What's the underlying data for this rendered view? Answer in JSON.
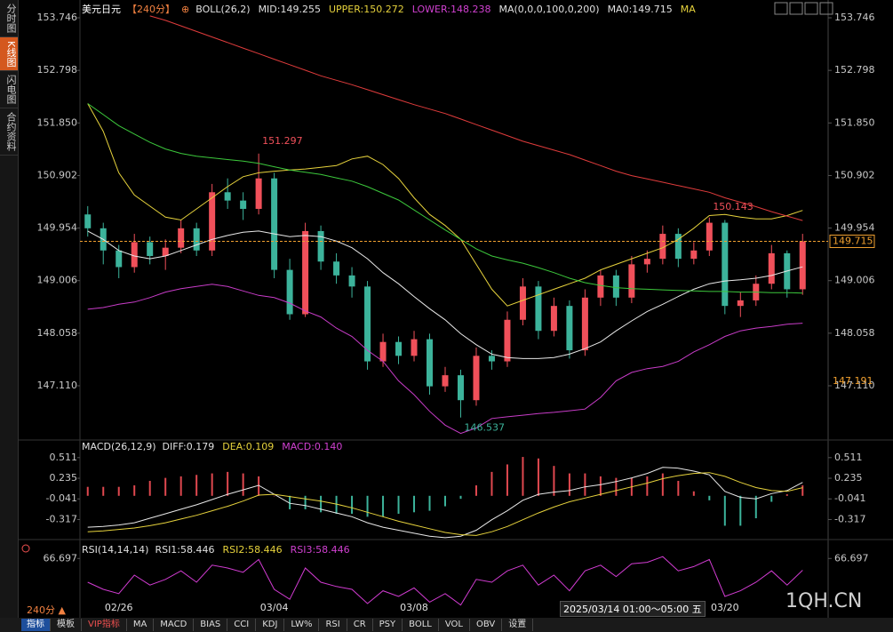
{
  "chart_data": [
    {
      "type": "candlestick",
      "title": "美元日元",
      "period": "【240分】",
      "indicator_labels": [
        "BOLL(26,2)",
        "MID:149.255",
        "UPPER:150.272",
        "LOWER:148.238",
        "MA(0,0,0,100,0,200)",
        "MA0:149.715",
        "MA"
      ],
      "categories": [
        null,
        null,
        "02/26",
        null,
        null,
        null,
        null,
        null,
        null,
        null,
        null,
        null,
        "03/04",
        null,
        null,
        null,
        null,
        null,
        null,
        null,
        null,
        "03/08",
        null,
        null,
        null,
        null,
        null,
        null,
        null,
        null,
        null,
        null,
        null,
        null,
        null,
        null,
        null,
        null,
        null,
        null,
        null,
        "03/20",
        null,
        null,
        null,
        null,
        null
      ],
      "ohlc": [
        [
          150.2,
          150.35,
          149.8,
          149.95
        ],
        [
          149.95,
          150.05,
          149.3,
          149.55
        ],
        [
          149.55,
          149.65,
          149.05,
          149.25
        ],
        [
          149.25,
          149.85,
          149.15,
          149.7
        ],
        [
          149.7,
          149.8,
          149.3,
          149.45
        ],
        [
          149.45,
          149.75,
          149.2,
          149.6
        ],
        [
          149.6,
          150.1,
          149.5,
          149.95
        ],
        [
          149.95,
          150.05,
          149.45,
          149.55
        ],
        [
          149.55,
          150.75,
          149.45,
          150.6
        ],
        [
          150.6,
          150.85,
          150.3,
          150.45
        ],
        [
          150.45,
          150.6,
          150.1,
          150.3
        ],
        [
          150.3,
          151.297,
          150.2,
          150.85
        ],
        [
          150.85,
          150.95,
          149.05,
          149.2
        ],
        [
          149.2,
          149.4,
          148.3,
          148.4
        ],
        [
          148.4,
          150.05,
          148.35,
          149.9
        ],
        [
          149.9,
          150.0,
          149.2,
          149.35
        ],
        [
          149.35,
          149.5,
          148.95,
          149.1
        ],
        [
          149.1,
          149.25,
          148.7,
          148.9
        ],
        [
          148.9,
          149.0,
          147.4,
          147.55
        ],
        [
          147.55,
          148.05,
          147.45,
          147.9
        ],
        [
          147.9,
          148.0,
          147.5,
          147.65
        ],
        [
          147.65,
          148.1,
          147.55,
          147.95
        ],
        [
          147.95,
          148.05,
          146.95,
          147.1
        ],
        [
          147.1,
          147.45,
          147.0,
          147.3
        ],
        [
          147.3,
          147.4,
          146.537,
          146.85
        ],
        [
          146.85,
          147.8,
          146.75,
          147.65
        ],
        [
          147.65,
          147.75,
          147.4,
          147.55
        ],
        [
          147.55,
          148.45,
          147.45,
          148.3
        ],
        [
          148.3,
          149.05,
          148.2,
          148.9
        ],
        [
          148.9,
          149.0,
          147.95,
          148.1
        ],
        [
          148.1,
          148.7,
          148.0,
          148.55
        ],
        [
          148.55,
          148.65,
          147.6,
          147.75
        ],
        [
          147.75,
          148.85,
          147.65,
          148.7
        ],
        [
          148.7,
          149.2,
          148.55,
          149.1
        ],
        [
          149.1,
          149.2,
          148.55,
          148.7
        ],
        [
          148.7,
          149.45,
          148.6,
          149.3
        ],
        [
          149.3,
          149.55,
          149.15,
          149.4
        ],
        [
          149.4,
          150.0,
          149.3,
          149.85
        ],
        [
          149.85,
          149.95,
          149.25,
          149.4
        ],
        [
          149.4,
          149.7,
          149.3,
          149.55
        ],
        [
          149.55,
          150.143,
          149.45,
          150.05
        ],
        [
          150.05,
          150.1,
          148.4,
          148.55
        ],
        [
          148.55,
          148.8,
          148.35,
          148.65
        ],
        [
          148.65,
          149.1,
          148.55,
          148.95
        ],
        [
          148.95,
          149.65,
          148.85,
          149.5
        ],
        [
          149.5,
          149.55,
          148.7,
          148.85
        ],
        [
          148.85,
          149.85,
          148.75,
          149.715
        ]
      ],
      "up_color": "#f0505a",
      "down_color": "#3cb39b",
      "series": [
        {
          "color": "#e8e8e8",
          "values": [
            149.9,
            149.75,
            149.55,
            149.45,
            149.4,
            149.45,
            149.55,
            149.65,
            149.75,
            149.82,
            149.88,
            149.9,
            149.85,
            149.8,
            149.82,
            149.8,
            149.72,
            149.6,
            149.4,
            149.15,
            148.95,
            148.72,
            148.5,
            148.3,
            148.05,
            147.85,
            147.68,
            147.62,
            147.6,
            147.6,
            147.62,
            147.68,
            147.78,
            147.9,
            148.1,
            148.28,
            148.45,
            148.58,
            148.72,
            148.85,
            148.95,
            149.0,
            149.02,
            149.05,
            149.1,
            149.18,
            149.255
          ]
        },
        {
          "color": "#e6d23c",
          "values": [
            152.2,
            151.7,
            150.95,
            150.55,
            150.35,
            150.15,
            150.1,
            150.3,
            150.5,
            150.7,
            150.88,
            150.95,
            150.98,
            151.0,
            151.02,
            151.05,
            151.08,
            151.2,
            151.25,
            151.1,
            150.85,
            150.5,
            150.2,
            150.0,
            149.75,
            149.3,
            148.85,
            148.55,
            148.65,
            148.75,
            148.85,
            148.95,
            149.05,
            149.2,
            149.3,
            149.4,
            149.5,
            149.6,
            149.75,
            149.95,
            150.18,
            150.2,
            150.15,
            150.12,
            150.12,
            150.18,
            150.272
          ]
        },
        {
          "color": "#c83cc8",
          "values": [
            148.49,
            148.52,
            148.58,
            148.62,
            148.7,
            148.8,
            148.86,
            148.9,
            148.94,
            148.9,
            148.82,
            148.74,
            148.7,
            148.6,
            148.46,
            148.35,
            148.15,
            148.0,
            147.75,
            147.55,
            147.2,
            146.95,
            146.65,
            146.4,
            146.25,
            146.35,
            146.52,
            146.55,
            146.58,
            146.61,
            146.63,
            146.66,
            146.69,
            146.9,
            147.2,
            147.35,
            147.42,
            147.46,
            147.55,
            147.72,
            147.85,
            148.0,
            148.1,
            148.15,
            148.18,
            148.22,
            148.238
          ]
        },
        {
          "color": "#3cc83c",
          "values": [
            152.2,
            152.0,
            151.8,
            151.65,
            151.5,
            151.38,
            151.3,
            151.25,
            151.22,
            151.19,
            151.16,
            151.12,
            151.06,
            151.0,
            150.96,
            150.92,
            150.86,
            150.8,
            150.7,
            150.58,
            150.46,
            150.28,
            150.1,
            149.92,
            149.75,
            149.58,
            149.45,
            149.38,
            149.32,
            149.24,
            149.15,
            149.05,
            148.97,
            148.92,
            148.88,
            148.86,
            148.85,
            148.84,
            148.83,
            148.82,
            148.81,
            148.81,
            148.8,
            148.8,
            148.79,
            148.79,
            148.78
          ]
        },
        {
          "color": "#e03c3c",
          "values": [
            null,
            null,
            null,
            null,
            153.78,
            153.7,
            153.6,
            153.5,
            153.4,
            153.3,
            153.2,
            153.1,
            153.0,
            152.9,
            152.8,
            152.7,
            152.62,
            152.54,
            152.45,
            152.36,
            152.27,
            152.18,
            152.1,
            152.02,
            151.92,
            151.82,
            151.72,
            151.62,
            151.52,
            151.44,
            151.36,
            151.28,
            151.18,
            151.08,
            150.98,
            150.9,
            150.84,
            150.78,
            150.72,
            150.66,
            150.6,
            150.5,
            150.42,
            150.34,
            150.25,
            150.17,
            150.09
          ]
        }
      ],
      "last_price_color": "#f0a030",
      "crosshair_price": 147.191,
      "ylim": [
        146.132,
        154.067
      ],
      "yticks": [
        153.746,
        152.798,
        {
          "value": 151.85,
          "label": "151.850"
        },
        150.902,
        149.954,
        149.006,
        148.058,
        {
          "value": 147.11,
          "label": "147.110"
        }
      ],
      "grid": false
    },
    {
      "type": "macd",
      "title": "MACD(26,12,9)",
      "indicator_labels": [
        "DIFF:0.179",
        "DEA:0.109",
        "MACD:0.140"
      ],
      "series": [
        {
          "color": "#e8e8e8",
          "values": [
            -0.42,
            -0.41,
            -0.39,
            -0.36,
            -0.3,
            -0.24,
            -0.18,
            -0.12,
            -0.05,
            0.02,
            0.08,
            0.14,
            0.02,
            -0.1,
            -0.13,
            -0.18,
            -0.23,
            -0.28,
            -0.36,
            -0.42,
            -0.46,
            -0.5,
            -0.54,
            -0.56,
            -0.54,
            -0.46,
            -0.32,
            -0.2,
            -0.06,
            0.02,
            0.05,
            0.07,
            0.12,
            0.15,
            0.19,
            0.24,
            0.3,
            0.38,
            0.37,
            0.33,
            0.28,
            0.06,
            -0.02,
            -0.04,
            0.03,
            0.07,
            0.179
          ]
        },
        {
          "color": "#e6d23c",
          "values": [
            -0.48,
            -0.47,
            -0.45,
            -0.43,
            -0.4,
            -0.36,
            -0.31,
            -0.26,
            -0.2,
            -0.14,
            -0.07,
            0.01,
            0.02,
            -0.01,
            -0.04,
            -0.07,
            -0.11,
            -0.16,
            -0.22,
            -0.28,
            -0.34,
            -0.39,
            -0.44,
            -0.49,
            -0.52,
            -0.53,
            -0.48,
            -0.41,
            -0.32,
            -0.23,
            -0.15,
            -0.08,
            -0.03,
            0.02,
            0.07,
            0.12,
            0.17,
            0.23,
            0.27,
            0.3,
            0.31,
            0.26,
            0.18,
            0.11,
            0.07,
            0.06,
            0.109
          ]
        }
      ],
      "histogram": {
        "up_color": "#e0484f",
        "down_color": "#3cb39b",
        "values": [
          0.12,
          0.12,
          0.12,
          0.14,
          0.2,
          0.24,
          0.26,
          0.28,
          0.3,
          0.32,
          0.3,
          0.26,
          0.0,
          -0.18,
          -0.18,
          -0.22,
          -0.24,
          -0.24,
          -0.28,
          -0.28,
          -0.24,
          -0.22,
          -0.2,
          -0.14,
          -0.04,
          0.14,
          0.32,
          0.42,
          0.52,
          0.5,
          0.4,
          0.3,
          0.3,
          0.26,
          0.24,
          0.24,
          0.26,
          0.3,
          0.2,
          0.06,
          -0.06,
          -0.4,
          -0.4,
          -0.3,
          -0.08,
          0.02,
          0.14
        ]
      },
      "ylim": [
        -0.585,
        0.604
      ],
      "yticks": [
        0.511,
        0.235,
        -0.041,
        -0.317
      ]
    },
    {
      "type": "line",
      "title": "RSI(14,14,14)",
      "indicator_labels": [
        "RSI1:58.446",
        "RSI2:58.446",
        "RSI3:58.446"
      ],
      "series": [
        {
          "color": "#d23cd2",
          "values": [
            50,
            45,
            42,
            55,
            48,
            52,
            58,
            50,
            62,
            60,
            57,
            66,
            45,
            38,
            60,
            50,
            47,
            45,
            35,
            44,
            40,
            46,
            36,
            42,
            34,
            52,
            50,
            58,
            62,
            48,
            55,
            44,
            58,
            62,
            54,
            63,
            64,
            68,
            58,
            61,
            66,
            40,
            44,
            50,
            58,
            48,
            58.446
          ]
        }
      ],
      "ylim": [
        25,
        75
      ],
      "yticks": [
        66.697
      ]
    }
  ],
  "sidebar_tabs": [
    "分时图",
    "K线图",
    "闪电图",
    "合约资料"
  ],
  "period_button": "240分",
  "crosshair_time": "2025/03/14 01:00～05:00 五",
  "toolbar": [
    "指标",
    "模板",
    "VIP指标",
    "MA",
    "MACD",
    "BIAS",
    "CCI",
    "KDJ",
    "LW%",
    "RSI",
    "CR",
    "PSY",
    "BOLL",
    "VOL",
    "OBV",
    "设置"
  ],
  "watermark": "1QH.CN"
}
